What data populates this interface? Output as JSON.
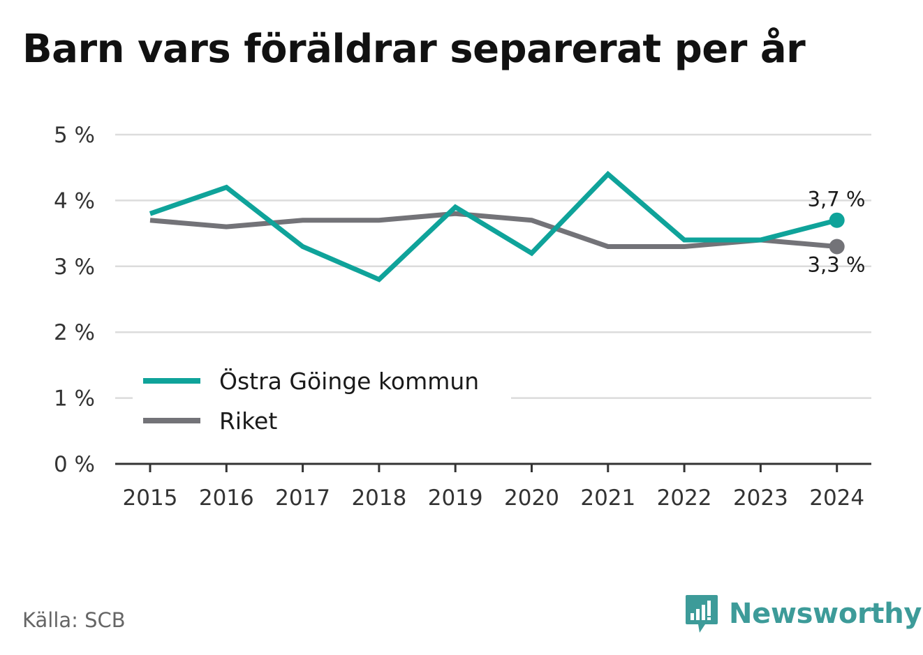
{
  "title": "Barn vars föräldrar separerat per år",
  "source": "Källa: SCB",
  "brand": {
    "name": "Newsworthy",
    "icon": "newsworthy-logo-icon",
    "color": "#3d9b99"
  },
  "chart_data": {
    "type": "line",
    "title": "Barn vars föräldrar separerat per år",
    "xlabel": "",
    "ylabel": "",
    "x": [
      "2015",
      "2016",
      "2017",
      "2018",
      "2019",
      "2020",
      "2021",
      "2022",
      "2023",
      "2024"
    ],
    "ylim": [
      0,
      5
    ],
    "yticks": [
      0,
      1,
      2,
      3,
      4,
      5
    ],
    "ytick_labels": [
      "0 %",
      "1 %",
      "2 %",
      "3 %",
      "4 %",
      "5 %"
    ],
    "grid": true,
    "legend": "bottom-left",
    "series": [
      {
        "name": "Östra Göinge kommun",
        "color": "#0fa39a",
        "values": [
          3.8,
          4.2,
          3.3,
          2.8,
          3.9,
          3.2,
          4.4,
          3.4,
          3.4,
          3.7
        ],
        "end_label": "3,7 %"
      },
      {
        "name": "Riket",
        "color": "#737378",
        "values": [
          3.7,
          3.6,
          3.7,
          3.7,
          3.8,
          3.7,
          3.3,
          3.3,
          3.4,
          3.3
        ],
        "end_label": "3,3 %"
      }
    ]
  }
}
